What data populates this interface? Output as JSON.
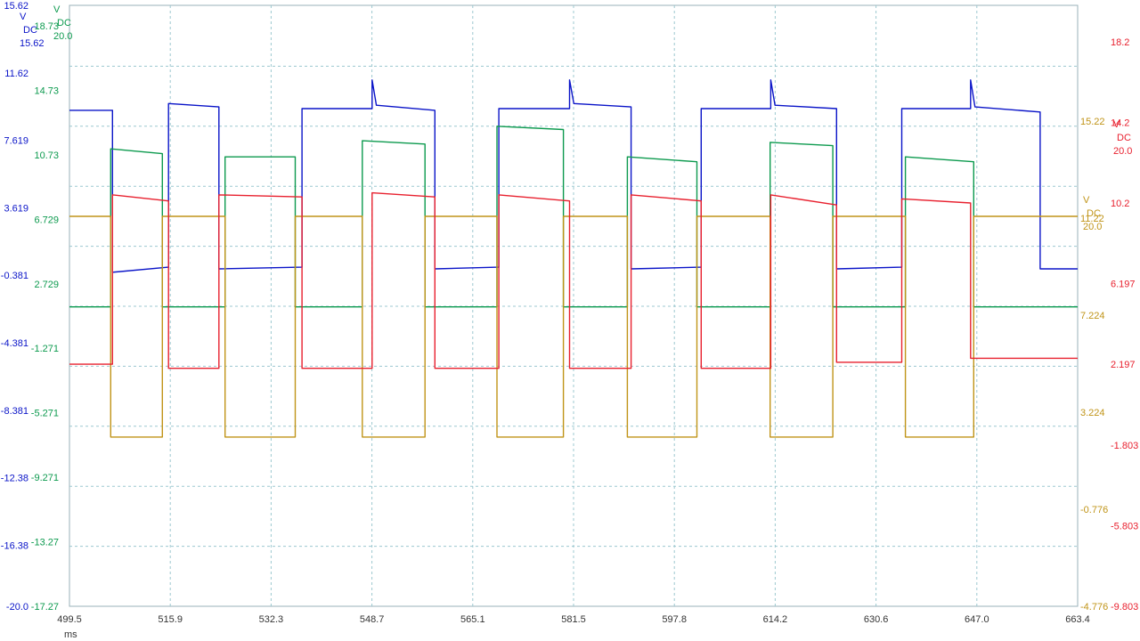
{
  "chart_data": {
    "type": "line",
    "title": "",
    "grid": true,
    "x_axis": {
      "unit": "ms",
      "range": [
        499.5,
        663.4
      ],
      "ticks": [
        "499.5",
        "515.9",
        "532.3",
        "548.7",
        "565.1",
        "581.5",
        "597.8",
        "614.2",
        "630.6",
        "647.0",
        "663.4"
      ]
    },
    "axes": [
      {
        "id": "blue",
        "color": "#0A14C8",
        "side": "left-outer",
        "label_lines": [
          "V",
          "DC"
        ],
        "top_value": "15.62",
        "range": [
          -20.0,
          15.62
        ],
        "ticks": [
          "15.62",
          "11.62",
          "7.619",
          "3.619",
          "-0.381",
          "-4.381",
          "-8.381",
          "-12.38",
          "-16.38",
          "-20.0"
        ]
      },
      {
        "id": "green",
        "color": "#0C9A4E",
        "side": "left-inner",
        "label_lines": [
          "V",
          "DC"
        ],
        "top_value": "20.0",
        "range": [
          -17.27,
          20.0
        ],
        "ticks": [
          "18.73",
          "14.73",
          "10.73",
          "6.729",
          "2.729",
          "-1.271",
          "-5.271",
          "-9.271",
          "-13.27",
          "-17.27"
        ]
      },
      {
        "id": "gold",
        "color": "#C09418",
        "side": "right-inner",
        "label_lines": [
          "V",
          "DC"
        ],
        "top_value": "20.0",
        "range": [
          -4.776,
          20.0
        ],
        "ticks": [
          "15.22",
          "11.22",
          "7.224",
          "3.224",
          "-0.776",
          "-4.776"
        ]
      },
      {
        "id": "red",
        "color": "#E8202E",
        "side": "right-outer",
        "label_lines": [
          "V",
          "DC"
        ],
        "top_value": "20.0",
        "range": [
          -9.803,
          20.0
        ],
        "ticks": [
          "18.2",
          "14.2",
          "10.2",
          "6.197",
          "2.197",
          "-1.803",
          "-5.803",
          "-9.803"
        ]
      }
    ],
    "series": [
      {
        "axis": "blue",
        "color": "#0A14C8",
        "points": [
          [
            499.5,
            9.4
          ],
          [
            506.5,
            9.4
          ],
          [
            506.5,
            -0.2
          ],
          [
            515.6,
            0.1
          ],
          [
            515.6,
            9.8
          ],
          [
            523.8,
            9.6
          ],
          [
            523.8,
            0.0
          ],
          [
            537.3,
            0.1
          ],
          [
            537.3,
            9.5
          ],
          [
            548.7,
            9.5
          ],
          [
            548.7,
            11.2
          ],
          [
            549.4,
            9.7
          ],
          [
            558.9,
            9.4
          ],
          [
            558.9,
            0.0
          ],
          [
            569.3,
            0.1
          ],
          [
            569.3,
            9.5
          ],
          [
            580.8,
            9.5
          ],
          [
            580.8,
            11.2
          ],
          [
            581.5,
            9.8
          ],
          [
            590.8,
            9.6
          ],
          [
            590.8,
            0.0
          ],
          [
            602.2,
            0.1
          ],
          [
            602.2,
            9.5
          ],
          [
            613.5,
            9.5
          ],
          [
            613.5,
            11.2
          ],
          [
            614.2,
            9.7
          ],
          [
            624.2,
            9.5
          ],
          [
            624.2,
            0.0
          ],
          [
            634.8,
            0.1
          ],
          [
            634.8,
            9.5
          ],
          [
            646.0,
            9.5
          ],
          [
            646.0,
            11.2
          ],
          [
            646.7,
            9.6
          ],
          [
            657.3,
            9.3
          ],
          [
            657.3,
            0.0
          ],
          [
            663.4,
            0.0
          ]
        ]
      },
      {
        "axis": "green",
        "color": "#0C9A4E",
        "points": [
          [
            499.5,
            1.3
          ],
          [
            506.2,
            1.3
          ],
          [
            506.2,
            11.1
          ],
          [
            514.6,
            10.8
          ],
          [
            514.6,
            1.3
          ],
          [
            524.8,
            1.3
          ],
          [
            524.8,
            10.6
          ],
          [
            536.2,
            10.6
          ],
          [
            536.2,
            1.3
          ],
          [
            547.1,
            1.3
          ],
          [
            547.1,
            11.6
          ],
          [
            557.3,
            11.4
          ],
          [
            557.3,
            1.3
          ],
          [
            569.0,
            1.3
          ],
          [
            569.0,
            12.5
          ],
          [
            579.8,
            12.3
          ],
          [
            579.8,
            1.3
          ],
          [
            590.2,
            1.3
          ],
          [
            590.2,
            10.6
          ],
          [
            601.5,
            10.3
          ],
          [
            601.5,
            1.3
          ],
          [
            613.4,
            1.3
          ],
          [
            613.4,
            11.5
          ],
          [
            623.6,
            11.3
          ],
          [
            623.6,
            1.3
          ],
          [
            635.4,
            1.3
          ],
          [
            635.4,
            10.6
          ],
          [
            646.5,
            10.3
          ],
          [
            646.5,
            1.3
          ],
          [
            663.4,
            1.3
          ]
        ]
      },
      {
        "axis": "gold",
        "color": "#C09418",
        "points": [
          [
            499.5,
            11.3
          ],
          [
            506.2,
            11.3
          ],
          [
            506.2,
            2.2
          ],
          [
            514.6,
            2.2
          ],
          [
            514.6,
            11.3
          ],
          [
            524.8,
            11.3
          ],
          [
            524.8,
            2.2
          ],
          [
            536.2,
            2.2
          ],
          [
            536.2,
            11.3
          ],
          [
            547.1,
            11.3
          ],
          [
            547.1,
            2.2
          ],
          [
            557.3,
            2.2
          ],
          [
            557.3,
            11.3
          ],
          [
            569.0,
            11.3
          ],
          [
            569.0,
            2.2
          ],
          [
            579.8,
            2.2
          ],
          [
            579.8,
            11.3
          ],
          [
            590.2,
            11.3
          ],
          [
            590.2,
            2.2
          ],
          [
            601.5,
            2.2
          ],
          [
            601.5,
            11.3
          ],
          [
            613.4,
            11.3
          ],
          [
            613.4,
            2.2
          ],
          [
            623.6,
            2.2
          ],
          [
            623.6,
            11.3
          ],
          [
            635.4,
            11.3
          ],
          [
            635.4,
            2.2
          ],
          [
            646.5,
            2.2
          ],
          [
            646.5,
            11.3
          ],
          [
            663.4,
            11.3
          ]
        ]
      },
      {
        "axis": "red",
        "color": "#E8202E",
        "points": [
          [
            499.5,
            2.2
          ],
          [
            506.5,
            2.2
          ],
          [
            506.5,
            10.6
          ],
          [
            515.6,
            10.3
          ],
          [
            515.6,
            2.0
          ],
          [
            523.8,
            2.0
          ],
          [
            523.8,
            10.6
          ],
          [
            537.3,
            10.5
          ],
          [
            537.3,
            2.0
          ],
          [
            548.7,
            2.0
          ],
          [
            548.7,
            10.7
          ],
          [
            558.9,
            10.5
          ],
          [
            558.9,
            2.0
          ],
          [
            569.3,
            2.0
          ],
          [
            569.3,
            10.6
          ],
          [
            580.8,
            10.3
          ],
          [
            580.8,
            2.0
          ],
          [
            590.8,
            2.0
          ],
          [
            590.8,
            10.6
          ],
          [
            602.2,
            10.3
          ],
          [
            602.2,
            2.0
          ],
          [
            613.5,
            2.0
          ],
          [
            613.5,
            10.6
          ],
          [
            624.2,
            10.1
          ],
          [
            624.2,
            2.3
          ],
          [
            634.8,
            2.3
          ],
          [
            634.8,
            10.4
          ],
          [
            646.0,
            10.2
          ],
          [
            646.0,
            2.5
          ],
          [
            663.4,
            2.5
          ]
        ]
      }
    ]
  }
}
